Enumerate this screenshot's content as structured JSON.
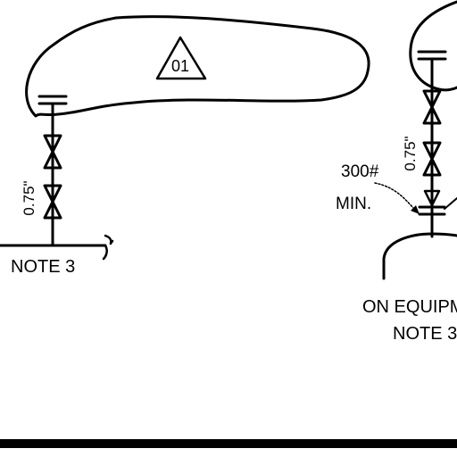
{
  "labels": {
    "tag_number": "01",
    "left_size": "0.75\"",
    "left_note": "NOTE 3",
    "right_size": "0.75\"",
    "rating_line1": "300#",
    "rating_line2": "MIN.",
    "right_note_line1": "ON EQUIPM",
    "right_note_line2": "NOTE 3"
  }
}
